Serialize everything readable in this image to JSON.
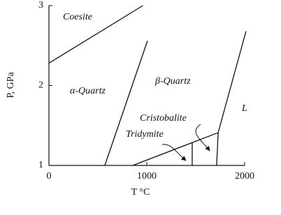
{
  "chart_data": {
    "type": "line",
    "xlabel": "T °C",
    "ylabel": "P, GPa",
    "xlim": [
      0,
      2000
    ],
    "ylim": [
      1,
      3
    ],
    "xticks": [
      0,
      1000,
      2000
    ],
    "yticks": [
      1,
      2,
      3
    ],
    "grid": false,
    "color": "#111111",
    "series": [
      {
        "x": [
          0,
          960
        ],
        "values": [
          2.28,
          3.0
        ]
      },
      {
        "x": [
          571,
          1007
        ],
        "values": [
          1,
          2.56
        ]
      },
      {
        "x": [
          857,
          1729,
          2014
        ],
        "values": [
          1,
          1.41,
          2.68
        ]
      },
      {
        "x": [
          1464,
          1464
        ],
        "values": [
          1,
          1.285
        ]
      },
      {
        "x": [
          1714,
          1729
        ],
        "values": [
          1,
          1.41
        ]
      }
    ],
    "annotations": [
      "Coesite",
      "α-Quartz",
      "β-Quartz",
      "Cristobalite",
      "Tridymite",
      "L"
    ]
  }
}
